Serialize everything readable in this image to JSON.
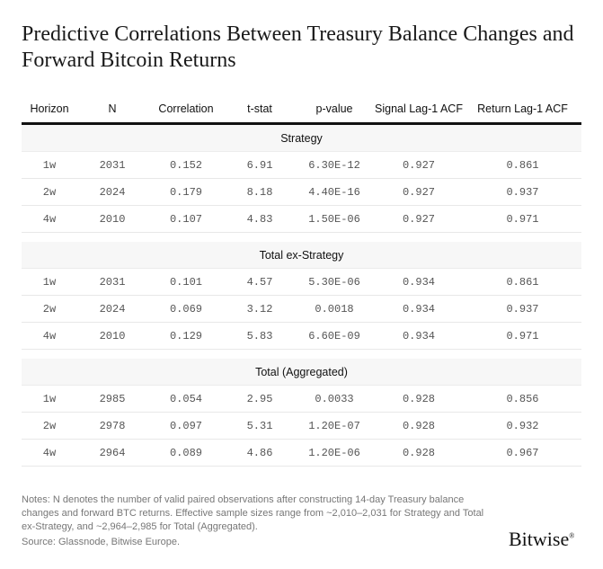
{
  "title": "Predictive Correlations Between Treasury Balance Changes and Forward Bitcoin Returns",
  "columns": [
    "Horizon",
    "N",
    "Correlation",
    "t-stat",
    "p-value",
    "Signal Lag-1 ACF",
    "Return Lag-1 ACF"
  ],
  "sections": [
    {
      "name": "Strategy",
      "rows": [
        [
          "1w",
          "2031",
          "0.152",
          "6.91",
          "6.30E-12",
          "0.927",
          "0.861"
        ],
        [
          "2w",
          "2024",
          "0.179",
          "8.18",
          "4.40E-16",
          "0.927",
          "0.937"
        ],
        [
          "4w",
          "2010",
          "0.107",
          "4.83",
          "1.50E-06",
          "0.927",
          "0.971"
        ]
      ]
    },
    {
      "name": "Total ex-Strategy",
      "rows": [
        [
          "1w",
          "2031",
          "0.101",
          "4.57",
          "5.30E-06",
          "0.934",
          "0.861"
        ],
        [
          "2w",
          "2024",
          "0.069",
          "3.12",
          "0.0018",
          "0.934",
          "0.937"
        ],
        [
          "4w",
          "2010",
          "0.129",
          "5.83",
          "6.60E-09",
          "0.934",
          "0.971"
        ]
      ]
    },
    {
      "name": "Total (Aggregated)",
      "rows": [
        [
          "1w",
          "2985",
          "0.054",
          "2.95",
          "0.0033",
          "0.928",
          "0.856"
        ],
        [
          "2w",
          "2978",
          "0.097",
          "5.31",
          "1.20E-07",
          "0.928",
          "0.932"
        ],
        [
          "4w",
          "2964",
          "0.089",
          "4.86",
          "1.20E-06",
          "0.928",
          "0.967"
        ]
      ]
    }
  ],
  "notes": "Notes: N denotes the number of valid paired observations after constructing 14-day Treasury balance changes and forward BTC returns. Effective sample sizes range from ~2,010–2,031 for Strategy and Total ex-Strategy, and ~2,964–2,985 for Total (Aggregated).",
  "source": "Source: Glassnode, Bitwise Europe.",
  "logo": "Bitwise"
}
